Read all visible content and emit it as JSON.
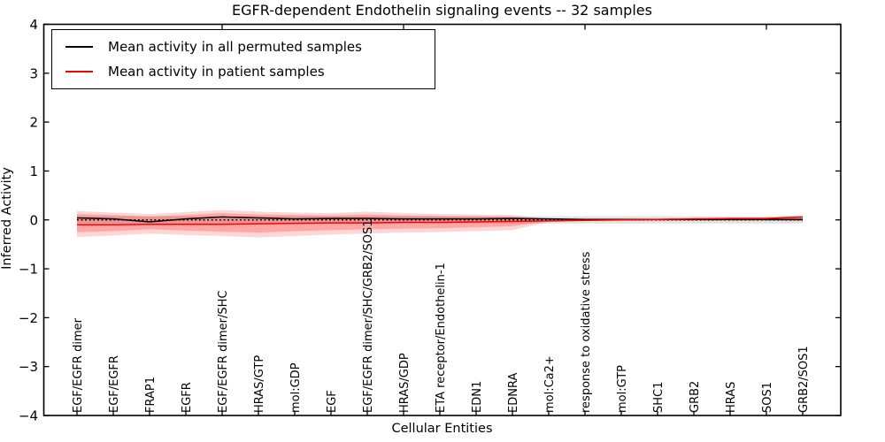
{
  "figure": {
    "title": "EGFR-dependent Endothelin signaling events -- 32 samples",
    "xlabel": "Cellular Entities",
    "ylabel": "Inferred Activity"
  },
  "legend": {
    "items": [
      {
        "label": "Mean activity in all permuted samples",
        "color": "#000000"
      },
      {
        "label": "Mean activity in patient samples",
        "color": "#ff0000"
      }
    ]
  },
  "chart_data": {
    "type": "line",
    "title": "EGFR-dependent Endothelin signaling events -- 32 samples",
    "xlabel": "Cellular Entities",
    "ylabel": "Inferred Activity",
    "ylim": [
      -4,
      4
    ],
    "yticks": [
      4,
      3,
      2,
      1,
      0,
      -1,
      -2,
      -3,
      -4
    ],
    "grid": false,
    "legend_position": "upper left",
    "categories": [
      "EGF/EGFR dimer",
      "EGF/EGFR",
      "FRAP1",
      "EGFR",
      "EGF/EGFR dimer/SHC",
      "HRAS/GTP",
      "mol:GDP",
      "EGF",
      "EGF/EGFR dimer/SHC/GRB2/SOS1",
      "HRAS/GDP",
      "ETA receptor/Endothelin-1",
      "EDN1",
      "EDNRA",
      "mol:Ca2+",
      "response to oxidative stress",
      "mol:GTP",
      "SHC1",
      "GRB2",
      "HRAS",
      "SOS1",
      "GRB2/SOS1"
    ],
    "series": [
      {
        "name": "Mean activity in all permuted samples",
        "color": "#000000",
        "style": "solid",
        "values": [
          0.04,
          0.02,
          -0.04,
          0.02,
          0.06,
          0.04,
          0.02,
          0.03,
          0.03,
          0.02,
          0.02,
          0.02,
          0.03,
          0.02,
          0.01,
          0.01,
          0.01,
          0.01,
          0.01,
          0.01,
          0.01
        ]
      },
      {
        "name": "Mean activity in patient samples",
        "color": "#ff0000",
        "style": "solid",
        "values": [
          -0.1,
          -0.1,
          -0.09,
          -0.09,
          -0.09,
          -0.08,
          -0.07,
          -0.06,
          -0.06,
          -0.05,
          -0.05,
          -0.04,
          -0.03,
          -0.02,
          -0.01,
          0.0,
          0.01,
          0.02,
          0.03,
          0.03,
          0.06
        ]
      },
      {
        "name": "zero baseline",
        "color": "#000000",
        "style": "dotted",
        "values": [
          0,
          0,
          0,
          0,
          0,
          0,
          0,
          0,
          0,
          0,
          0,
          0,
          0,
          0,
          0,
          0,
          0,
          0,
          0,
          0,
          0
        ]
      }
    ],
    "bands": [
      {
        "name": "permuted samples range",
        "color": "rgba(0,0,0,0.11)",
        "upper": [
          0.075,
          0.075,
          0.075,
          0.075,
          0.075,
          0.075,
          0.075,
          0.075,
          0.075,
          0.075,
          0.075,
          0.075,
          0.075,
          0.075,
          0.075,
          0.075,
          0.075,
          0.075,
          0.075,
          0.075,
          0.075
        ],
        "lower": [
          -0.075,
          -0.075,
          -0.075,
          -0.075,
          -0.075,
          -0.075,
          -0.075,
          -0.075,
          -0.075,
          -0.075,
          -0.075,
          -0.075,
          -0.075,
          -0.075,
          -0.075,
          -0.075,
          -0.075,
          -0.075,
          -0.075,
          -0.075,
          -0.075
        ]
      },
      {
        "name": "patient samples outer range",
        "color": "rgba(255,0,0,0.16)",
        "upper": [
          0.18,
          0.15,
          0.12,
          0.16,
          0.2,
          0.17,
          0.15,
          0.14,
          0.17,
          0.14,
          0.12,
          0.11,
          0.1,
          0.02,
          0.02,
          0.02,
          0.03,
          0.04,
          0.04,
          0.05,
          0.08
        ],
        "lower": [
          -0.35,
          -0.32,
          -0.28,
          -0.31,
          -0.33,
          -0.36,
          -0.33,
          -0.3,
          -0.28,
          -0.26,
          -0.25,
          -0.23,
          -0.21,
          -0.04,
          -0.03,
          -0.02,
          -0.02,
          -0.02,
          -0.02,
          -0.02,
          -0.03
        ]
      },
      {
        "name": "patient samples inner range",
        "color": "rgba(255,0,0,0.22)",
        "upper": [
          0.12,
          0.1,
          0.07,
          0.1,
          0.14,
          0.11,
          0.1,
          0.09,
          0.11,
          0.09,
          0.08,
          0.07,
          0.06,
          0.01,
          0.01,
          0.01,
          0.02,
          0.03,
          0.03,
          0.04,
          0.07
        ],
        "lower": [
          -0.25,
          -0.23,
          -0.19,
          -0.22,
          -0.24,
          -0.26,
          -0.23,
          -0.21,
          -0.19,
          -0.18,
          -0.17,
          -0.15,
          -0.13,
          -0.02,
          -0.02,
          -0.01,
          -0.01,
          -0.01,
          -0.01,
          -0.01,
          -0.02
        ]
      }
    ]
  }
}
